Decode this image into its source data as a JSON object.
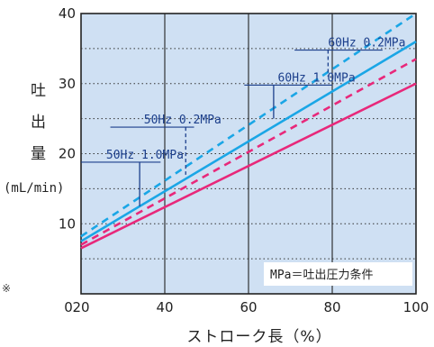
{
  "chart_data": {
    "type": "line",
    "xlabel": "ストローク長（%）",
    "ylabel_chars": [
      "吐",
      "出",
      "量"
    ],
    "ylabel_unit": "(mL/min)",
    "xlim": [
      20,
      100
    ],
    "ylim": [
      0,
      40
    ],
    "xticks": [
      20,
      40,
      60,
      80,
      100
    ],
    "yticks": [
      10,
      20,
      30,
      40
    ],
    "origin_label": "0",
    "grid": "horizontal-dotted",
    "note": "MPa＝吐出圧力条件",
    "side_mark": "※",
    "colors": {
      "background": "#cfe0f3",
      "cyan": "#1aa6e6",
      "magenta": "#e8287a",
      "label": "#1c3f8c"
    },
    "series": [
      {
        "name": "60Hz 0.2MPa",
        "color": "#1aa6e6",
        "dash": true,
        "x": [
          20,
          100
        ],
        "y": [
          8.2,
          40
        ]
      },
      {
        "name": "60Hz 1.0MPa",
        "color": "#1aa6e6",
        "dash": false,
        "x": [
          20,
          100
        ],
        "y": [
          7.5,
          36
        ]
      },
      {
        "name": "50Hz 0.2MPa",
        "color": "#e8287a",
        "dash": true,
        "x": [
          20,
          100
        ],
        "y": [
          7.0,
          33.5
        ]
      },
      {
        "name": "50Hz 1.0MPa",
        "color": "#e8287a",
        "dash": false,
        "x": [
          20,
          100
        ],
        "y": [
          6.5,
          30
        ]
      }
    ],
    "callouts": [
      {
        "series": "60Hz 0.2MPa",
        "label": "60Hz 0.2MPa",
        "label_x": 79,
        "label_y": 35.3,
        "line_x_left": 71,
        "line_x_right": 92,
        "drop_x": 79,
        "drop_to_y": 31,
        "drop_dash": true
      },
      {
        "series": "60Hz 1.0MPa",
        "label": "60Hz 1.0MPa",
        "label_x": 67,
        "label_y": 30.3,
        "line_x_left": 59,
        "line_x_right": 80,
        "drop_x": 66,
        "drop_to_y": 25,
        "drop_dash": false
      },
      {
        "series": "50Hz 0.2MPa",
        "label": "50Hz 0.2MPa",
        "label_x": 35,
        "label_y": 24.3,
        "line_x_left": 27,
        "line_x_right": 47,
        "drop_x": 45,
        "drop_to_y": 17,
        "drop_dash": true
      },
      {
        "series": "50Hz 1.0MPa",
        "label": "50Hz 1.0MPa",
        "label_x": 26,
        "label_y": 19.3,
        "line_x_left": 20,
        "line_x_right": 39,
        "drop_x": 34,
        "drop_to_y": 12.5,
        "drop_dash": false
      }
    ]
  }
}
